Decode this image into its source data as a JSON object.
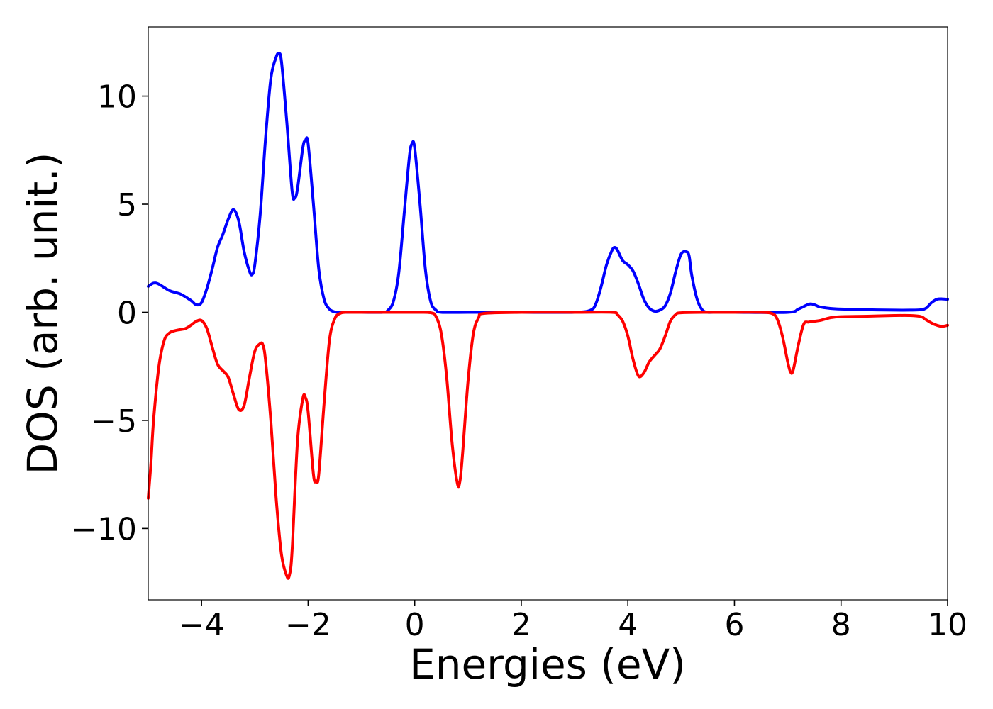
{
  "chart_data": {
    "type": "line",
    "title": "",
    "xlabel": "Energies (eV)",
    "ylabel": "DOS (arb. unit.)",
    "xlim": [
      -5,
      10
    ],
    "ylim": [
      -13.3,
      13.2
    ],
    "x_ticks": [
      -4,
      -2,
      0,
      2,
      4,
      6,
      8,
      10
    ],
    "y_ticks": [
      -10,
      -5,
      0,
      5,
      10
    ],
    "x_tick_labels": [
      "−4",
      "−2",
      "0",
      "2",
      "4",
      "6",
      "8",
      "10"
    ],
    "y_tick_labels": [
      "−10",
      "−5",
      "0",
      "5",
      "10"
    ],
    "grid": false,
    "legend": "none",
    "series": [
      {
        "color": "#0000ff",
        "x": [
          -5.0,
          -4.9,
          -4.8,
          -4.6,
          -4.4,
          -4.2,
          -4.1,
          -4.0,
          -3.9,
          -3.8,
          -3.7,
          -3.6,
          -3.5,
          -3.4,
          -3.3,
          -3.2,
          -3.1,
          -3.05,
          -3.0,
          -2.9,
          -2.8,
          -2.7,
          -2.6,
          -2.55,
          -2.5,
          -2.4,
          -2.3,
          -2.25,
          -2.2,
          -2.1,
          -2.05,
          -2.0,
          -1.9,
          -1.8,
          -1.7,
          -1.6,
          -1.5,
          -1.4,
          -1.3,
          -1.0,
          -0.6,
          -0.5,
          -0.4,
          -0.3,
          -0.2,
          -0.1,
          -0.05,
          0.0,
          0.1,
          0.2,
          0.3,
          0.4,
          0.5,
          1.0,
          2.0,
          3.0,
          3.3,
          3.4,
          3.5,
          3.6,
          3.7,
          3.75,
          3.8,
          3.9,
          4.0,
          4.1,
          4.2,
          4.3,
          4.4,
          4.5,
          4.6,
          4.7,
          4.8,
          4.9,
          5.0,
          5.1,
          5.15,
          5.2,
          5.3,
          5.4,
          5.5,
          5.6,
          6.0,
          7.0,
          7.2,
          7.4,
          7.5,
          7.6,
          7.8,
          8.0,
          8.5,
          9.0,
          9.3,
          9.5,
          9.6,
          9.7,
          9.8,
          9.9,
          10.0
        ],
        "y": [
          1.2,
          1.35,
          1.3,
          1.0,
          0.85,
          0.55,
          0.35,
          0.45,
          1.1,
          2.0,
          3.0,
          3.6,
          4.3,
          4.75,
          4.2,
          2.8,
          1.9,
          1.75,
          2.2,
          4.5,
          8.0,
          10.8,
          11.8,
          11.95,
          11.6,
          8.8,
          5.6,
          5.3,
          5.7,
          7.6,
          7.95,
          7.8,
          5.0,
          2.0,
          0.6,
          0.15,
          0.02,
          0.0,
          0.0,
          0.0,
          0.0,
          0.1,
          0.5,
          1.8,
          4.5,
          7.2,
          7.8,
          7.6,
          5.0,
          2.0,
          0.5,
          0.1,
          0.0,
          0.0,
          0.0,
          0.0,
          0.1,
          0.4,
          1.2,
          2.2,
          2.85,
          3.0,
          2.9,
          2.4,
          2.2,
          1.9,
          1.3,
          0.6,
          0.2,
          0.05,
          0.1,
          0.3,
          0.9,
          1.9,
          2.7,
          2.8,
          2.6,
          1.7,
          0.6,
          0.1,
          0.0,
          0.0,
          0.0,
          0.0,
          0.15,
          0.38,
          0.35,
          0.25,
          0.18,
          0.15,
          0.12,
          0.1,
          0.1,
          0.12,
          0.2,
          0.45,
          0.6,
          0.62,
          0.6
        ]
      },
      {
        "color": "#ff0000",
        "x": [
          -5.0,
          -4.95,
          -4.9,
          -4.8,
          -4.7,
          -4.6,
          -4.5,
          -4.4,
          -4.3,
          -4.2,
          -4.1,
          -4.0,
          -3.9,
          -3.8,
          -3.7,
          -3.6,
          -3.5,
          -3.4,
          -3.3,
          -3.2,
          -3.1,
          -3.0,
          -2.9,
          -2.85,
          -2.8,
          -2.7,
          -2.6,
          -2.5,
          -2.4,
          -2.35,
          -2.3,
          -2.2,
          -2.1,
          -2.05,
          -2.0,
          -1.9,
          -1.85,
          -1.8,
          -1.7,
          -1.6,
          -1.5,
          -1.4,
          -1.3,
          -1.2,
          -1.0,
          0.0,
          0.3,
          0.4,
          0.5,
          0.6,
          0.7,
          0.8,
          0.85,
          0.9,
          1.0,
          1.1,
          1.2,
          1.3,
          2.0,
          3.0,
          3.7,
          3.8,
          3.9,
          4.0,
          4.1,
          4.2,
          4.3,
          4.4,
          4.5,
          4.6,
          4.7,
          4.8,
          4.9,
          5.0,
          5.5,
          6.0,
          6.5,
          6.7,
          6.8,
          6.9,
          7.0,
          7.05,
          7.1,
          7.2,
          7.3,
          7.4,
          7.6,
          7.8,
          8.0,
          8.5,
          9.0,
          9.3,
          9.5,
          9.6,
          9.7,
          9.8,
          9.9,
          10.0
        ],
        "y": [
          -8.6,
          -7.0,
          -5.0,
          -2.5,
          -1.3,
          -0.95,
          -0.85,
          -0.8,
          -0.75,
          -0.6,
          -0.42,
          -0.38,
          -0.75,
          -1.6,
          -2.4,
          -2.7,
          -3.0,
          -3.8,
          -4.5,
          -4.3,
          -3.0,
          -1.8,
          -1.45,
          -1.5,
          -2.2,
          -5.0,
          -8.6,
          -11.2,
          -12.2,
          -12.15,
          -11.0,
          -6.0,
          -4.0,
          -3.95,
          -4.6,
          -7.5,
          -7.8,
          -7.5,
          -4.2,
          -1.3,
          -0.3,
          -0.05,
          0.0,
          0.0,
          0.0,
          0.0,
          -0.02,
          -0.2,
          -1.0,
          -3.0,
          -6.0,
          -7.9,
          -7.8,
          -6.5,
          -3.2,
          -1.0,
          -0.25,
          -0.05,
          0.0,
          0.0,
          0.0,
          -0.1,
          -0.4,
          -1.1,
          -2.2,
          -2.95,
          -2.8,
          -2.3,
          -2.0,
          -1.7,
          -1.1,
          -0.4,
          -0.1,
          -0.02,
          0.0,
          0.0,
          0.0,
          -0.05,
          -0.3,
          -1.1,
          -2.3,
          -2.75,
          -2.7,
          -1.5,
          -0.55,
          -0.45,
          -0.38,
          -0.25,
          -0.2,
          -0.18,
          -0.15,
          -0.15,
          -0.2,
          -0.35,
          -0.5,
          -0.6,
          -0.65,
          -0.6
        ]
      }
    ]
  }
}
